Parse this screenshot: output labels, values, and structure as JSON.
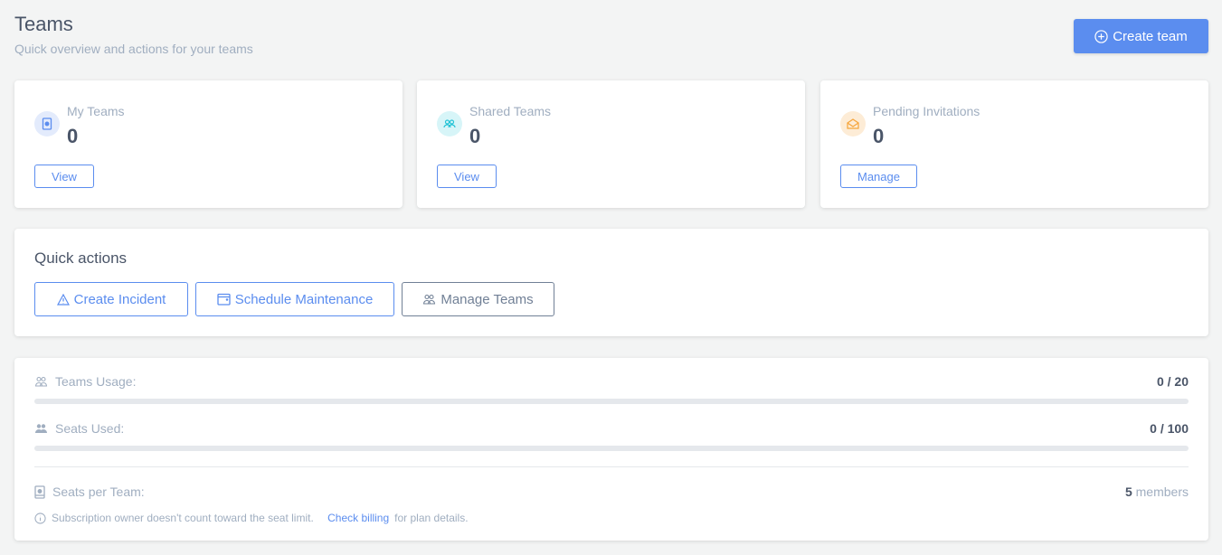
{
  "header": {
    "title": "Teams",
    "subtitle": "Quick overview and actions for your teams",
    "create_label": "Create team"
  },
  "stats": [
    {
      "label": "My Teams",
      "value": "0",
      "button": "View",
      "icon": "badge-icon",
      "color": "#5b8def",
      "bg": "#e3ebfc"
    },
    {
      "label": "Shared Teams",
      "value": "0",
      "button": "View",
      "icon": "users-icon",
      "color": "#22c3d6",
      "bg": "#d7f5f8"
    },
    {
      "label": "Pending Invitations",
      "value": "0",
      "button": "Manage",
      "icon": "envelope-icon",
      "color": "#f6a53b",
      "bg": "#fdecd6"
    }
  ],
  "quick_actions": {
    "title": "Quick actions",
    "buttons": [
      "Create Incident",
      "Schedule Maintenance",
      "Manage Teams"
    ]
  },
  "usage": {
    "teams_label": "Teams Usage:",
    "teams_value": "0 / 20",
    "teams_fraction": 0,
    "seats_label": "Seats Used:",
    "seats_value": "0 / 100",
    "seats_fraction": 0,
    "per_team_label": "Seats per Team:",
    "per_team_number": "5",
    "per_team_unit": "members",
    "note": "Subscription owner doesn't count toward the seat limit.",
    "note_link": "Check billing",
    "note_suffix": "for plan details."
  }
}
